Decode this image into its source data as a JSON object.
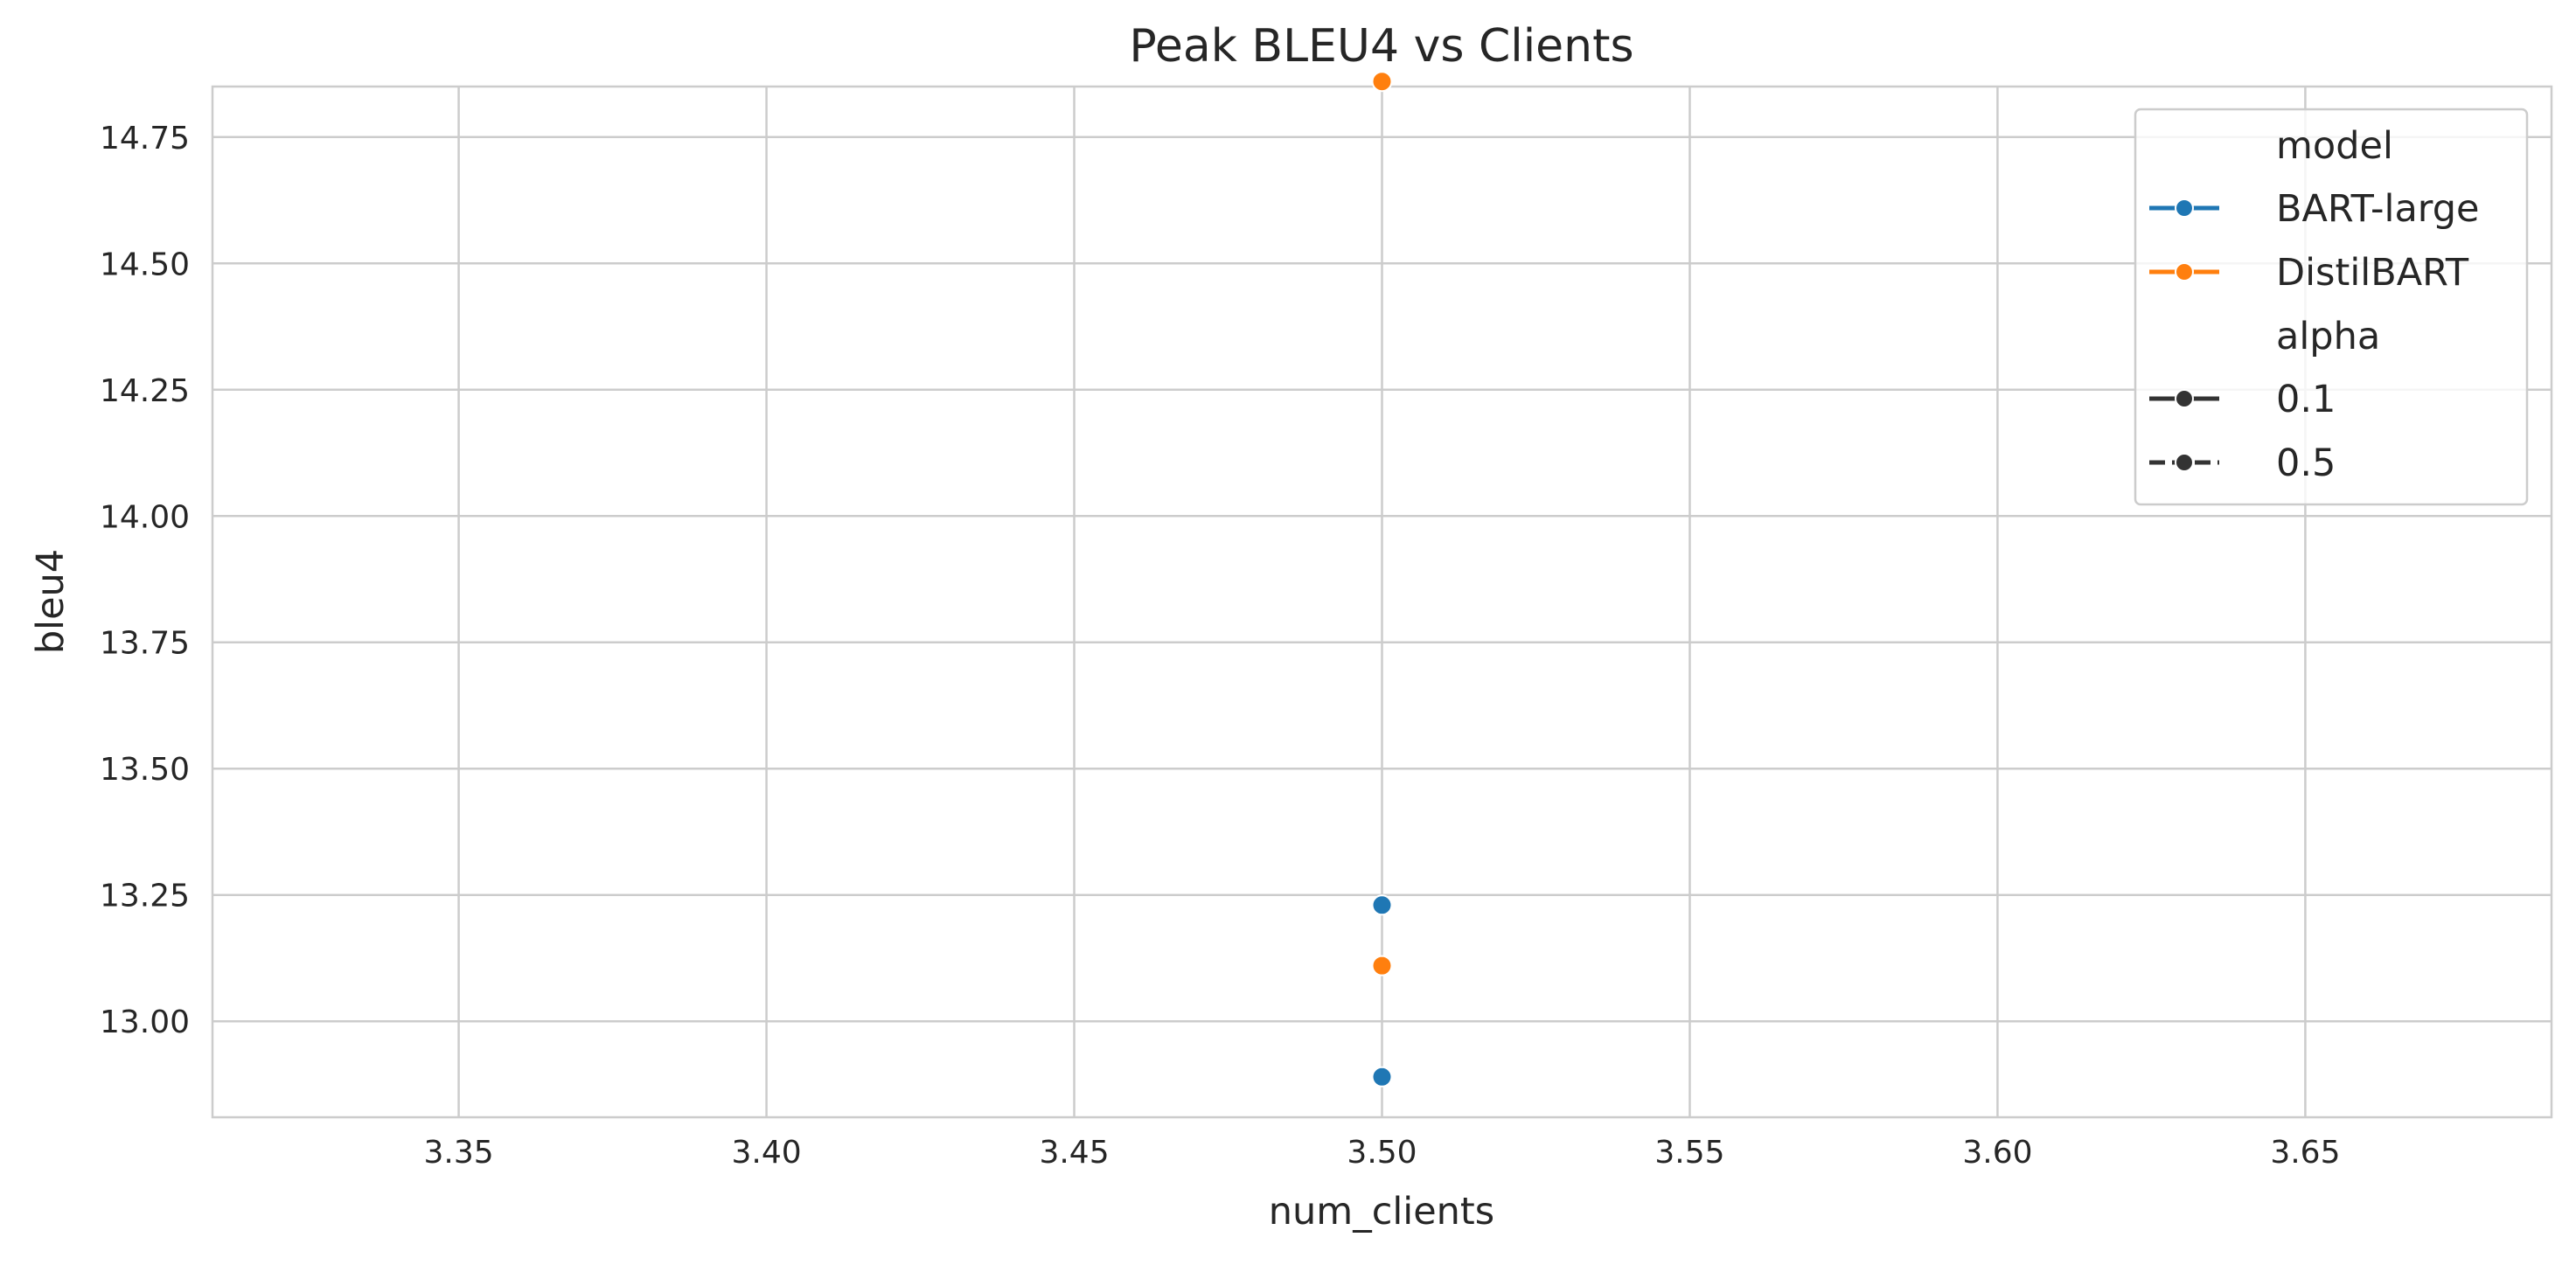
{
  "chart_data": {
    "type": "scatter",
    "title": "Peak BLEU4 vs Clients",
    "xlabel": "num_clients",
    "ylabel": "bleu4",
    "xlim": [
      3.31,
      3.69
    ],
    "ylim": [
      12.81,
      14.85
    ],
    "x_ticks": [
      "3.35",
      "3.40",
      "3.45",
      "3.50",
      "3.55",
      "3.60",
      "3.65"
    ],
    "y_ticks": [
      "13.00",
      "13.25",
      "13.50",
      "13.75",
      "14.00",
      "14.25",
      "14.50",
      "14.75"
    ],
    "grid": true,
    "legend_position": "top-right",
    "legend": {
      "hue_title": "model",
      "style_title": "alpha",
      "hue_entries": [
        {
          "label": "BART-large",
          "color": "#1f77b4"
        },
        {
          "label": "DistilBART",
          "color": "#ff7f0e"
        }
      ],
      "style_entries": [
        {
          "label": "0.1",
          "dash": "solid"
        },
        {
          "label": "0.5",
          "dash": "dashed"
        }
      ]
    },
    "series": [
      {
        "name": "BART-large",
        "color": "#1f77b4",
        "points": [
          {
            "x": 3.5,
            "y": 13.23,
            "alpha": "0.1"
          },
          {
            "x": 3.5,
            "y": 12.89,
            "alpha": "0.5"
          }
        ]
      },
      {
        "name": "DistilBART",
        "color": "#ff7f0e",
        "points": [
          {
            "x": 3.5,
            "y": 14.86,
            "alpha": "0.1"
          },
          {
            "x": 3.5,
            "y": 13.11,
            "alpha": "0.5"
          }
        ]
      }
    ]
  }
}
